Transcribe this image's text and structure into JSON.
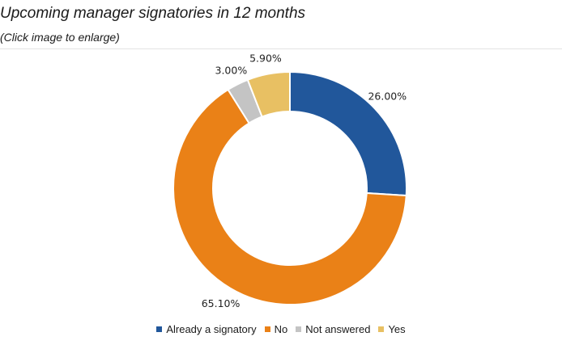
{
  "header": {
    "title": "Upcoming manager signatories in 12 months",
    "subtitle": "(Click image to enlarge)"
  },
  "chart_data": {
    "type": "pie",
    "style": "donut",
    "title": "",
    "categories": [
      "Already a signatory",
      "No",
      "Not answered",
      "Yes"
    ],
    "values": [
      26.0,
      65.1,
      3.0,
      5.9
    ],
    "labels": [
      "26.00%",
      "65.10%",
      "3.00%",
      "5.90%"
    ],
    "colors": [
      "#21579b",
      "#ea8117",
      "#c4c4c4",
      "#e8c063"
    ],
    "legend_position": "bottom"
  }
}
